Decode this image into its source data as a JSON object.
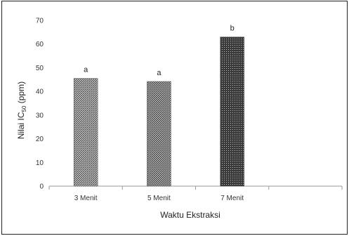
{
  "chart_data": {
    "type": "bar",
    "categories": [
      "3 Menit",
      "5 Menit",
      "7 Menit",
      ""
    ],
    "values": [
      45.5,
      44.2,
      63.0,
      null
    ],
    "data_labels": [
      "a",
      "a",
      "b",
      ""
    ],
    "xlabel": "Waktu Ekstraksi",
    "ylabel_main": "Nilai IC",
    "ylabel_sub": "50",
    "ylabel_unit": " (ppm)",
    "ylim": [
      0,
      70
    ],
    "yticks": [
      0,
      10,
      20,
      30,
      40,
      50,
      60,
      70
    ],
    "grid": false,
    "legend": "none",
    "bar_color": "#4a4a4a",
    "bar_patterns": [
      "diagonal-hatch",
      "dot-grid",
      "dense-dot"
    ]
  }
}
